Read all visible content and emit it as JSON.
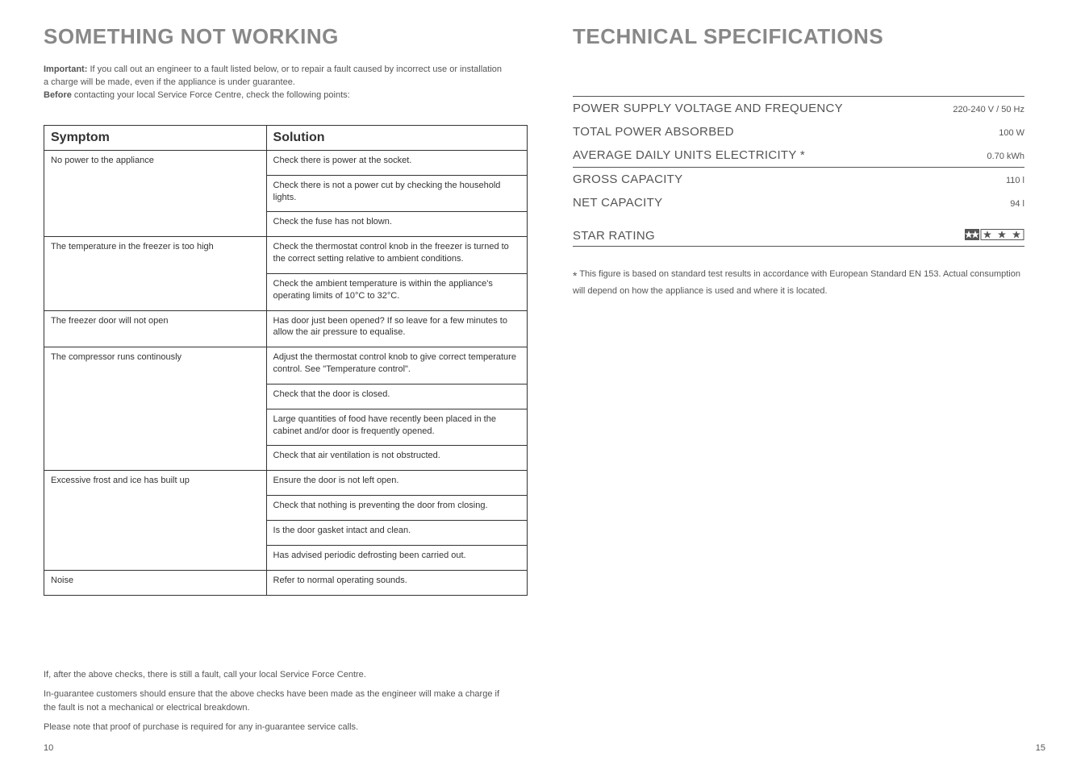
{
  "left": {
    "title": "SOMETHING NOT WORKING",
    "intro_bold1": "Important:",
    "intro1": " If you call out an engineer to a fault listed below, or to repair a fault caused by incorrect use or installation a charge will be made, even if the appliance is under guarantee.",
    "intro_bold2": "Before",
    "intro2": " contacting your local Service Force Centre, check the following points:",
    "th_symptom": "Symptom",
    "th_solution": "Solution",
    "rows": [
      {
        "symptom": "No power to the appliance",
        "solutions": [
          "Check there is power at the socket.",
          "Check there is not a power cut by checking the household lights.",
          "Check the fuse has not blown."
        ]
      },
      {
        "symptom": "The temperature in the freezer is too high",
        "solutions": [
          "Check the thermostat control knob in the freezer is turned to the correct setting relative to ambient conditions.",
          "Check the ambient temperature is within the appliance's operating limits of 10°C  to 32°C."
        ]
      },
      {
        "symptom": "The freezer door will not open",
        "solutions": [
          "Has door just been opened? If so leave for a few minutes to allow the air pressure to equalise."
        ]
      },
      {
        "symptom": "The compressor runs continously",
        "solutions": [
          "Adjust the thermostat control knob to give correct temperature control. See \"Temperature control\".",
          "Check that the door is closed.",
          "Large quantities of food have recently been placed in the cabinet and/or door is frequently opened.",
          "Check that air ventilation is not obstructed."
        ]
      },
      {
        "symptom": "Excessive frost and ice has built up",
        "solutions": [
          "Ensure the door is not left open.",
          "Check that nothing is preventing the door from closing.",
          "Is the door gasket intact and clean.",
          "Has advised periodic defrosting been carried out."
        ]
      },
      {
        "symptom": "Noise",
        "solutions": [
          "Refer to normal operating sounds."
        ]
      }
    ],
    "note1": "If, after the above checks, there is still a fault, call your local Service Force Centre.",
    "note2": "In-guarantee customers should ensure that the above checks have been made as the engineer will make a charge if the fault is not a mechanical or electrical breakdown.",
    "note3": "Please note that proof of purchase is required for any in-guarantee service calls.",
    "page_num": "10"
  },
  "right": {
    "title": "TECHNICAL SPECIFICATIONS",
    "specs": [
      {
        "label": "POWER SUPPLY VOLTAGE AND FREQUENCY",
        "value": "220-240 V / 50 Hz"
      },
      {
        "label": "TOTAL POWER ABSORBED",
        "value": "100 W"
      },
      {
        "label": "AVERAGE DAILY UNITS ELECTRICITY *",
        "value": "0.70 kWh"
      },
      {
        "label": "GROSS CAPACITY",
        "value": "110 l"
      },
      {
        "label": "NET CAPACITY",
        "value": "94 l"
      }
    ],
    "star_label": "STAR RATING",
    "footnote": "This figure is based on standard test results in accordance with European Standard EN 153. Actual consumption will depend on how the appliance is used and where it is located.",
    "page_num": "15",
    "star_fill": "#555555"
  }
}
